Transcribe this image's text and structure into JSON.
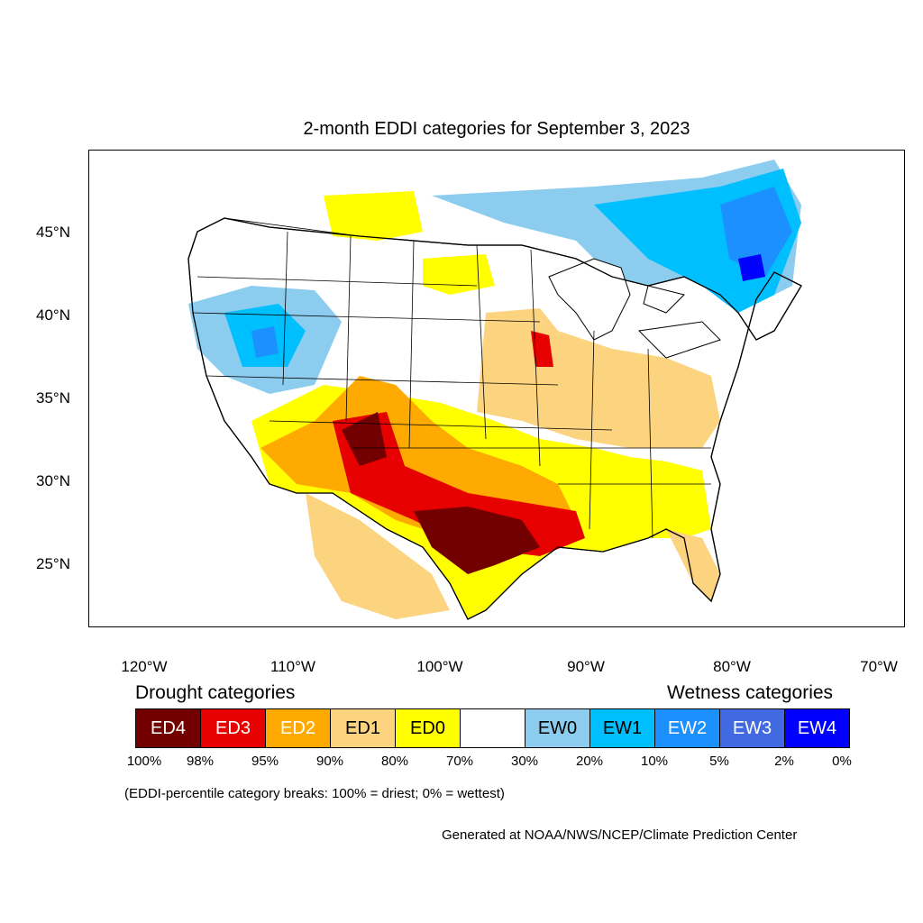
{
  "map": {
    "title": "2-month EDDI categories for September 3, 2023",
    "lat_labels": [
      "45°N",
      "40°N",
      "35°N",
      "30°N",
      "25°N"
    ],
    "lon_labels": [
      "120°W",
      "110°W",
      "100°W",
      "90°W",
      "80°W",
      "70°W"
    ]
  },
  "legend": {
    "drought_heading": "Drought categories",
    "wetness_heading": "Wetness categories",
    "categories": [
      {
        "label": "ED4",
        "color": "#730000",
        "text_color": "#ffffff"
      },
      {
        "label": "ED3",
        "color": "#e60000",
        "text_color": "#ffffff"
      },
      {
        "label": "ED2",
        "color": "#ffaa00",
        "text_color": "#ffffff"
      },
      {
        "label": "ED1",
        "color": "#fcd37f",
        "text_color": "#000000"
      },
      {
        "label": "ED0",
        "color": "#ffff00",
        "text_color": "#000000"
      },
      {
        "label": "",
        "color": "#ffffff",
        "text_color": "#000000"
      },
      {
        "label": "EW0",
        "color": "#8ccdef",
        "text_color": "#000000"
      },
      {
        "label": "EW1",
        "color": "#00bfff",
        "text_color": "#000000"
      },
      {
        "label": "EW2",
        "color": "#1d90ff",
        "text_color": "#ffffff"
      },
      {
        "label": "EW3",
        "color": "#4169e1",
        "text_color": "#ffffff"
      },
      {
        "label": "EW4",
        "color": "#0000ff",
        "text_color": "#ffffff"
      }
    ],
    "percentiles": [
      "100%",
      "98%",
      "95%",
      "90%",
      "80%",
      "70%",
      "30%",
      "20%",
      "10%",
      "5%",
      "2%",
      "0%"
    ]
  },
  "footer": {
    "note": "(EDDI-percentile category breaks: 100% = driest; 0% = wettest)",
    "credit": "Generated at NOAA/NWS/NCEP/Climate Prediction Center"
  }
}
